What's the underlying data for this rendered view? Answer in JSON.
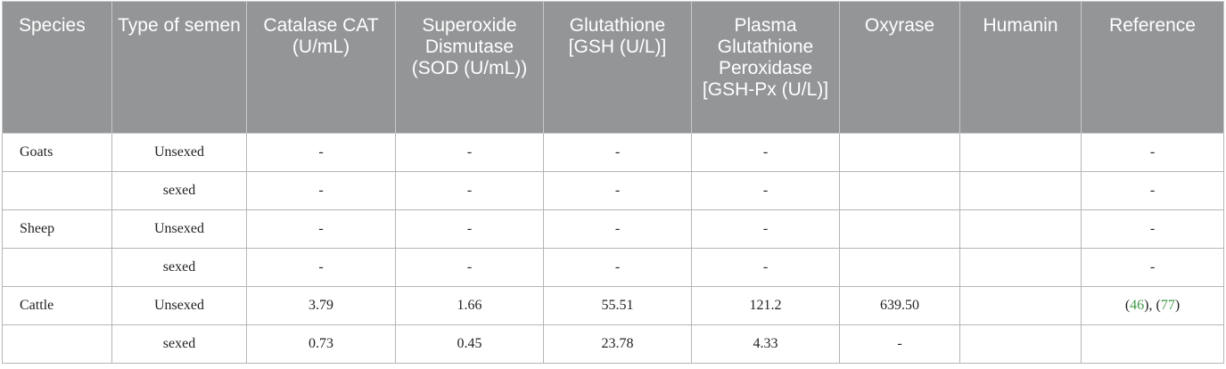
{
  "table": {
    "headers": [
      "Species",
      "Type of semen",
      "Catalase CAT (U/mL)",
      "Superoxide Dismutase (SOD (U/mL))",
      "Glutathione [GSH (U/L)]",
      "Plasma Glutathione Peroxidase [GSH-Px (U/L)]",
      "Oxyrase",
      "Humanin",
      "Reference"
    ],
    "rows": [
      [
        "Goats",
        "Unsexed",
        "-",
        "-",
        "-",
        "-",
        "",
        "",
        "-"
      ],
      [
        "",
        "sexed",
        "-",
        "-",
        "-",
        "-",
        "",
        "",
        "-"
      ],
      [
        "Sheep",
        "Unsexed",
        "-",
        "-",
        "-",
        "-",
        "",
        "",
        "-"
      ],
      [
        "",
        "sexed",
        "-",
        "-",
        "-",
        "-",
        "",
        "",
        "-"
      ],
      [
        "Cattle",
        "Unsexed",
        "3.79",
        "1.66",
        "55.51",
        "121.2",
        "639.50",
        "",
        ""
      ],
      [
        "",
        "sexed",
        "0.73",
        "0.45",
        "23.78",
        "4.33",
        "-",
        "",
        ""
      ]
    ],
    "cattle_reference": {
      "open1": "(",
      "ref1": "46",
      "mid": "), (",
      "ref2": "77",
      "close": ")"
    }
  },
  "colors": {
    "header_bg": "#939597",
    "header_text": "#ffffff",
    "link": "#3f9b48",
    "grid": "#b3b5b7"
  }
}
